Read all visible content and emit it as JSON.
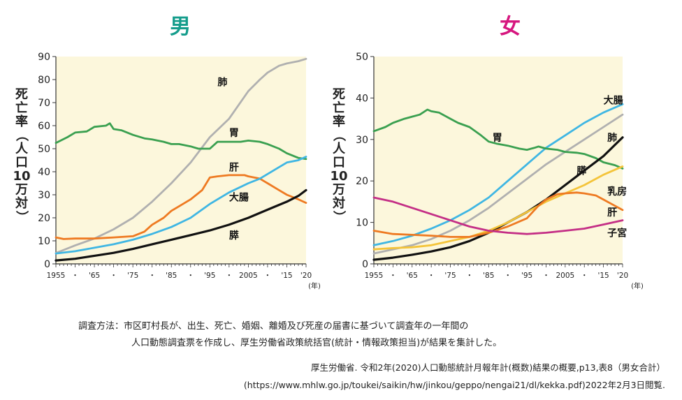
{
  "colors": {
    "plot_bg": "#fcf7dc",
    "axis": "#333333",
    "title_male": "#159d8c",
    "title_female": "#d6177f",
    "lung": "#b0b0b0",
    "stomach": "#3aa050",
    "liver": "#ee7a22",
    "colorectal": "#3fb6e3",
    "pancreas": "#111111",
    "breast": "#f4c43a",
    "uterus": "#c42f86"
  },
  "chart_data": [
    {
      "type": "line",
      "title": "男",
      "ylabel": "死亡率（人口10万対）",
      "xunit": "(年)",
      "xlim": [
        1955,
        2020
      ],
      "ylim": [
        0,
        90
      ],
      "yticks": [
        0,
        10,
        20,
        30,
        40,
        50,
        60,
        70,
        80,
        90
      ],
      "xtick_labels": [
        {
          "x": 1955,
          "label": "1955"
        },
        {
          "x": 1960,
          "label": "・"
        },
        {
          "x": 1965,
          "label": "'65"
        },
        {
          "x": 1970,
          "label": "・"
        },
        {
          "x": 1975,
          "label": "'75"
        },
        {
          "x": 1980,
          "label": "・"
        },
        {
          "x": 1985,
          "label": "'85"
        },
        {
          "x": 1990,
          "label": "・"
        },
        {
          "x": 1995,
          "label": "'95"
        },
        {
          "x": 2000,
          "label": "・"
        },
        {
          "x": 2005,
          "label": "2005"
        },
        {
          "x": 2010,
          "label": "・"
        },
        {
          "x": 2015,
          "label": "'15"
        },
        {
          "x": 2020,
          "label": "'20"
        }
      ],
      "series": [
        {
          "name": "肺",
          "color_key": "lung",
          "label_at": [
            1997,
            79
          ],
          "x": [
            1955,
            1960,
            1965,
            1970,
            1975,
            1980,
            1985,
            1990,
            1995,
            2000,
            2005,
            2008,
            2010,
            2013,
            2015,
            2018,
            2020
          ],
          "y": [
            4.7,
            8,
            11,
            15,
            20,
            27,
            35,
            44,
            55,
            63,
            75,
            80,
            83,
            86,
            87,
            88,
            89
          ]
        },
        {
          "name": "胃",
          "color_key": "stomach",
          "label_at": [
            2000,
            57
          ],
          "x": [
            1955,
            1958,
            1960,
            1963,
            1965,
            1968,
            1969,
            1970,
            1972,
            1975,
            1978,
            1980,
            1983,
            1985,
            1987,
            1990,
            1992,
            1995,
            1997,
            2000,
            2003,
            2005,
            2008,
            2010,
            2013,
            2015,
            2018,
            2020
          ],
          "y": [
            52.5,
            55,
            57,
            57.5,
            59.5,
            60,
            61,
            58.5,
            58,
            56,
            54.5,
            54,
            53,
            52,
            52,
            51,
            50,
            50,
            53,
            53,
            53,
            53.5,
            53,
            52,
            50,
            48,
            46,
            45.5
          ]
        },
        {
          "name": "肝",
          "color_key": "liver",
          "label_at": [
            2000,
            42
          ],
          "x": [
            1955,
            1957,
            1960,
            1965,
            1970,
            1975,
            1978,
            1980,
            1983,
            1985,
            1988,
            1990,
            1993,
            1995,
            1997,
            2000,
            2002,
            2004,
            2005,
            2008,
            2010,
            2013,
            2015,
            2018,
            2020
          ],
          "y": [
            11.5,
            10.8,
            11,
            11,
            11.5,
            12,
            14,
            17,
            20,
            23,
            26,
            28,
            32,
            37.5,
            38,
            38.5,
            38.5,
            38.5,
            38,
            37,
            35,
            32,
            30,
            28,
            26.5
          ]
        },
        {
          "name": "大腸",
          "color_key": "colorectal",
          "label_at": [
            2000,
            29
          ],
          "x": [
            1955,
            1960,
            1965,
            1970,
            1975,
            1980,
            1985,
            1990,
            1995,
            2000,
            2005,
            2008,
            2010,
            2013,
            2015,
            2018,
            2020
          ],
          "y": [
            4.5,
            5.5,
            7,
            8.5,
            10.5,
            13,
            16,
            20,
            26,
            31,
            35,
            37,
            39,
            42,
            44,
            45,
            46.5
          ]
        },
        {
          "name": "膵",
          "color_key": "pancreas",
          "label_at": [
            2000,
            12.5
          ],
          "x": [
            1955,
            1960,
            1965,
            1970,
            1975,
            1980,
            1985,
            1990,
            1995,
            2000,
            2005,
            2010,
            2015,
            2018,
            2020
          ],
          "y": [
            1.5,
            2.2,
            3.5,
            4.8,
            6.5,
            8.5,
            10.5,
            12.5,
            14.5,
            17,
            20,
            23.5,
            27,
            29.5,
            32
          ]
        }
      ]
    },
    {
      "type": "line",
      "title": "女",
      "ylabel": "死亡率（人口10万対）",
      "xunit": "(年)",
      "xlim": [
        1955,
        2020
      ],
      "ylim": [
        0,
        50
      ],
      "yticks": [
        0,
        10,
        20,
        30,
        40,
        50
      ],
      "xtick_labels": [
        {
          "x": 1955,
          "label": "1955"
        },
        {
          "x": 1960,
          "label": "・"
        },
        {
          "x": 1965,
          "label": "'65"
        },
        {
          "x": 1970,
          "label": "・"
        },
        {
          "x": 1975,
          "label": "'75"
        },
        {
          "x": 1980,
          "label": "・"
        },
        {
          "x": 1985,
          "label": "'85"
        },
        {
          "x": 1990,
          "label": "・"
        },
        {
          "x": 1995,
          "label": "'95"
        },
        {
          "x": 2000,
          "label": "・"
        },
        {
          "x": 2005,
          "label": "2005"
        },
        {
          "x": 2010,
          "label": "・"
        },
        {
          "x": 2015,
          "label": "'15"
        },
        {
          "x": 2020,
          "label": "'20"
        }
      ],
      "series": [
        {
          "name": "大腸",
          "color_key": "colorectal",
          "label_at": [
            2015,
            39.5
          ],
          "x": [
            1955,
            1960,
            1965,
            1970,
            1975,
            1980,
            1985,
            1990,
            1995,
            2000,
            2005,
            2010,
            2015,
            2020
          ],
          "y": [
            4.5,
            5.5,
            6.8,
            8.5,
            10.5,
            13,
            16,
            20,
            24,
            28,
            31,
            34,
            36.5,
            38.5
          ]
        },
        {
          "name": "肺",
          "color_key": "lung",
          "label_at": [
            2016,
            30.5
          ],
          "x": [
            1955,
            1960,
            1965,
            1970,
            1975,
            1980,
            1985,
            1990,
            1995,
            2000,
            2005,
            2010,
            2015,
            2020
          ],
          "y": [
            2.5,
            3.5,
            4.5,
            6,
            8,
            10.5,
            13.5,
            17,
            20.5,
            24,
            27,
            30,
            33,
            36
          ]
        },
        {
          "name": "胃",
          "color_key": "stomach",
          "label_at": [
            1986,
            30.5
          ],
          "x": [
            1955,
            1958,
            1960,
            1963,
            1965,
            1967,
            1969,
            1970,
            1972,
            1975,
            1977,
            1980,
            1983,
            1985,
            1987,
            1990,
            1993,
            1995,
            1997,
            1998,
            2000,
            2003,
            2005,
            2008,
            2010,
            2013,
            2015,
            2018,
            2020
          ],
          "y": [
            32,
            33,
            34,
            35,
            35.5,
            36,
            37.2,
            36.8,
            36.5,
            35,
            34,
            33,
            31,
            29.5,
            29,
            28.5,
            27.8,
            27.5,
            28,
            28.3,
            27.8,
            27.5,
            27,
            26.8,
            26.5,
            25.5,
            24.5,
            23.8,
            23
          ]
        },
        {
          "name": "膵",
          "color_key": "pancreas",
          "label_at": [
            2008,
            22.5
          ],
          "x": [
            1955,
            1960,
            1965,
            1970,
            1975,
            1980,
            1985,
            1990,
            1995,
            2000,
            2005,
            2010,
            2015,
            2020
          ],
          "y": [
            1,
            1.5,
            2.2,
            3,
            4,
            5.5,
            7.5,
            10,
            12.5,
            15.5,
            19,
            22.5,
            26,
            30.5
          ]
        },
        {
          "name": "乳房",
          "color_key": "breast",
          "label_at": [
            2016,
            17.5
          ],
          "x": [
            1955,
            1960,
            1965,
            1970,
            1975,
            1980,
            1985,
            1990,
            1995,
            2000,
            2005,
            2010,
            2015,
            2020
          ],
          "y": [
            3.5,
            3.8,
            4,
            4.5,
            5.5,
            6.5,
            8,
            10,
            12.5,
            15,
            17,
            19,
            21.5,
            23.5
          ]
        },
        {
          "name": "肝",
          "color_key": "liver",
          "label_at": [
            2016,
            12.5
          ],
          "x": [
            1955,
            1960,
            1965,
            1970,
            1975,
            1980,
            1985,
            1990,
            1995,
            1998,
            2000,
            2003,
            2005,
            2008,
            2010,
            2013,
            2015,
            2018,
            2020
          ],
          "y": [
            8,
            7.2,
            7,
            6.8,
            6.5,
            6.5,
            7.5,
            9,
            11,
            14,
            15.5,
            16.8,
            17,
            17.2,
            17,
            16.5,
            15.5,
            14,
            13
          ]
        },
        {
          "name": "子宮",
          "color_key": "uterus",
          "label_at": [
            2016,
            7.5
          ],
          "x": [
            1955,
            1960,
            1965,
            1970,
            1975,
            1980,
            1985,
            1990,
            1995,
            2000,
            2005,
            2010,
            2015,
            2020
          ],
          "y": [
            16,
            15,
            13.5,
            12,
            10.5,
            9,
            8,
            7.5,
            7.2,
            7.5,
            8,
            8.5,
            9.5,
            10.5
          ]
        }
      ]
    }
  ],
  "notes": {
    "method_line1": "調査方法：市区町村長が、出生、死亡、婚姻、離婚及び死産の届書に基づいて調査年の一年間の",
    "method_line2": "人口動態調査票を作成し、厚生労働省政策統括官(統計・情報政策担当)が結果を集計した。",
    "source_line1": "厚生労働省. 令和2年(2020)人口動態統計月報年計(概数)結果の概要,p13,表8（男女合計）",
    "source_line2": "(https://www.mhlw.go.jp/toukei/saikin/hw/jinkou/geppo/nengai21/dl/kekka.pdf)2022年2月3日閲覧."
  }
}
